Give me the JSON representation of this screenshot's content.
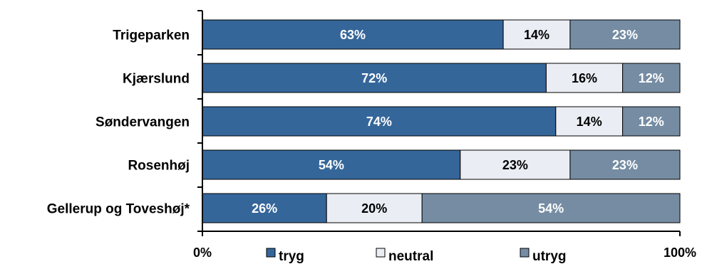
{
  "chart_data": {
    "type": "bar",
    "orientation": "horizontal",
    "stacked": true,
    "categories": [
      "Trigeparken",
      "Kjærslund",
      "Søndervangen",
      "Rosenhøj",
      "Gellerup og Toveshøj*"
    ],
    "series": [
      {
        "name": "tryg",
        "values": [
          63,
          72,
          74,
          54,
          26
        ],
        "labels": [
          "63%",
          "72%",
          "74%",
          "54%",
          "26%"
        ],
        "color": "#35669a",
        "label_color": "#ffffff"
      },
      {
        "name": "neutral",
        "values": [
          14,
          16,
          14,
          23,
          20
        ],
        "labels": [
          "14%",
          "16%",
          "14%",
          "23%",
          "20%"
        ],
        "color": "#eaeef4",
        "label_color": "#000000"
      },
      {
        "name": "utryg",
        "values": [
          23,
          12,
          12,
          23,
          54
        ],
        "labels": [
          "23%",
          "12%",
          "12%",
          "23%",
          "54%"
        ],
        "color": "#758ca3",
        "label_color": "#ffffff"
      }
    ],
    "xlim": [
      0,
      100
    ],
    "x_ticks": [
      {
        "value": 0,
        "label": "0%"
      },
      {
        "value": 100,
        "label": "100%"
      }
    ],
    "title": "",
    "xlabel": "",
    "ylabel": "",
    "grid": false,
    "legend_position": "bottom"
  }
}
